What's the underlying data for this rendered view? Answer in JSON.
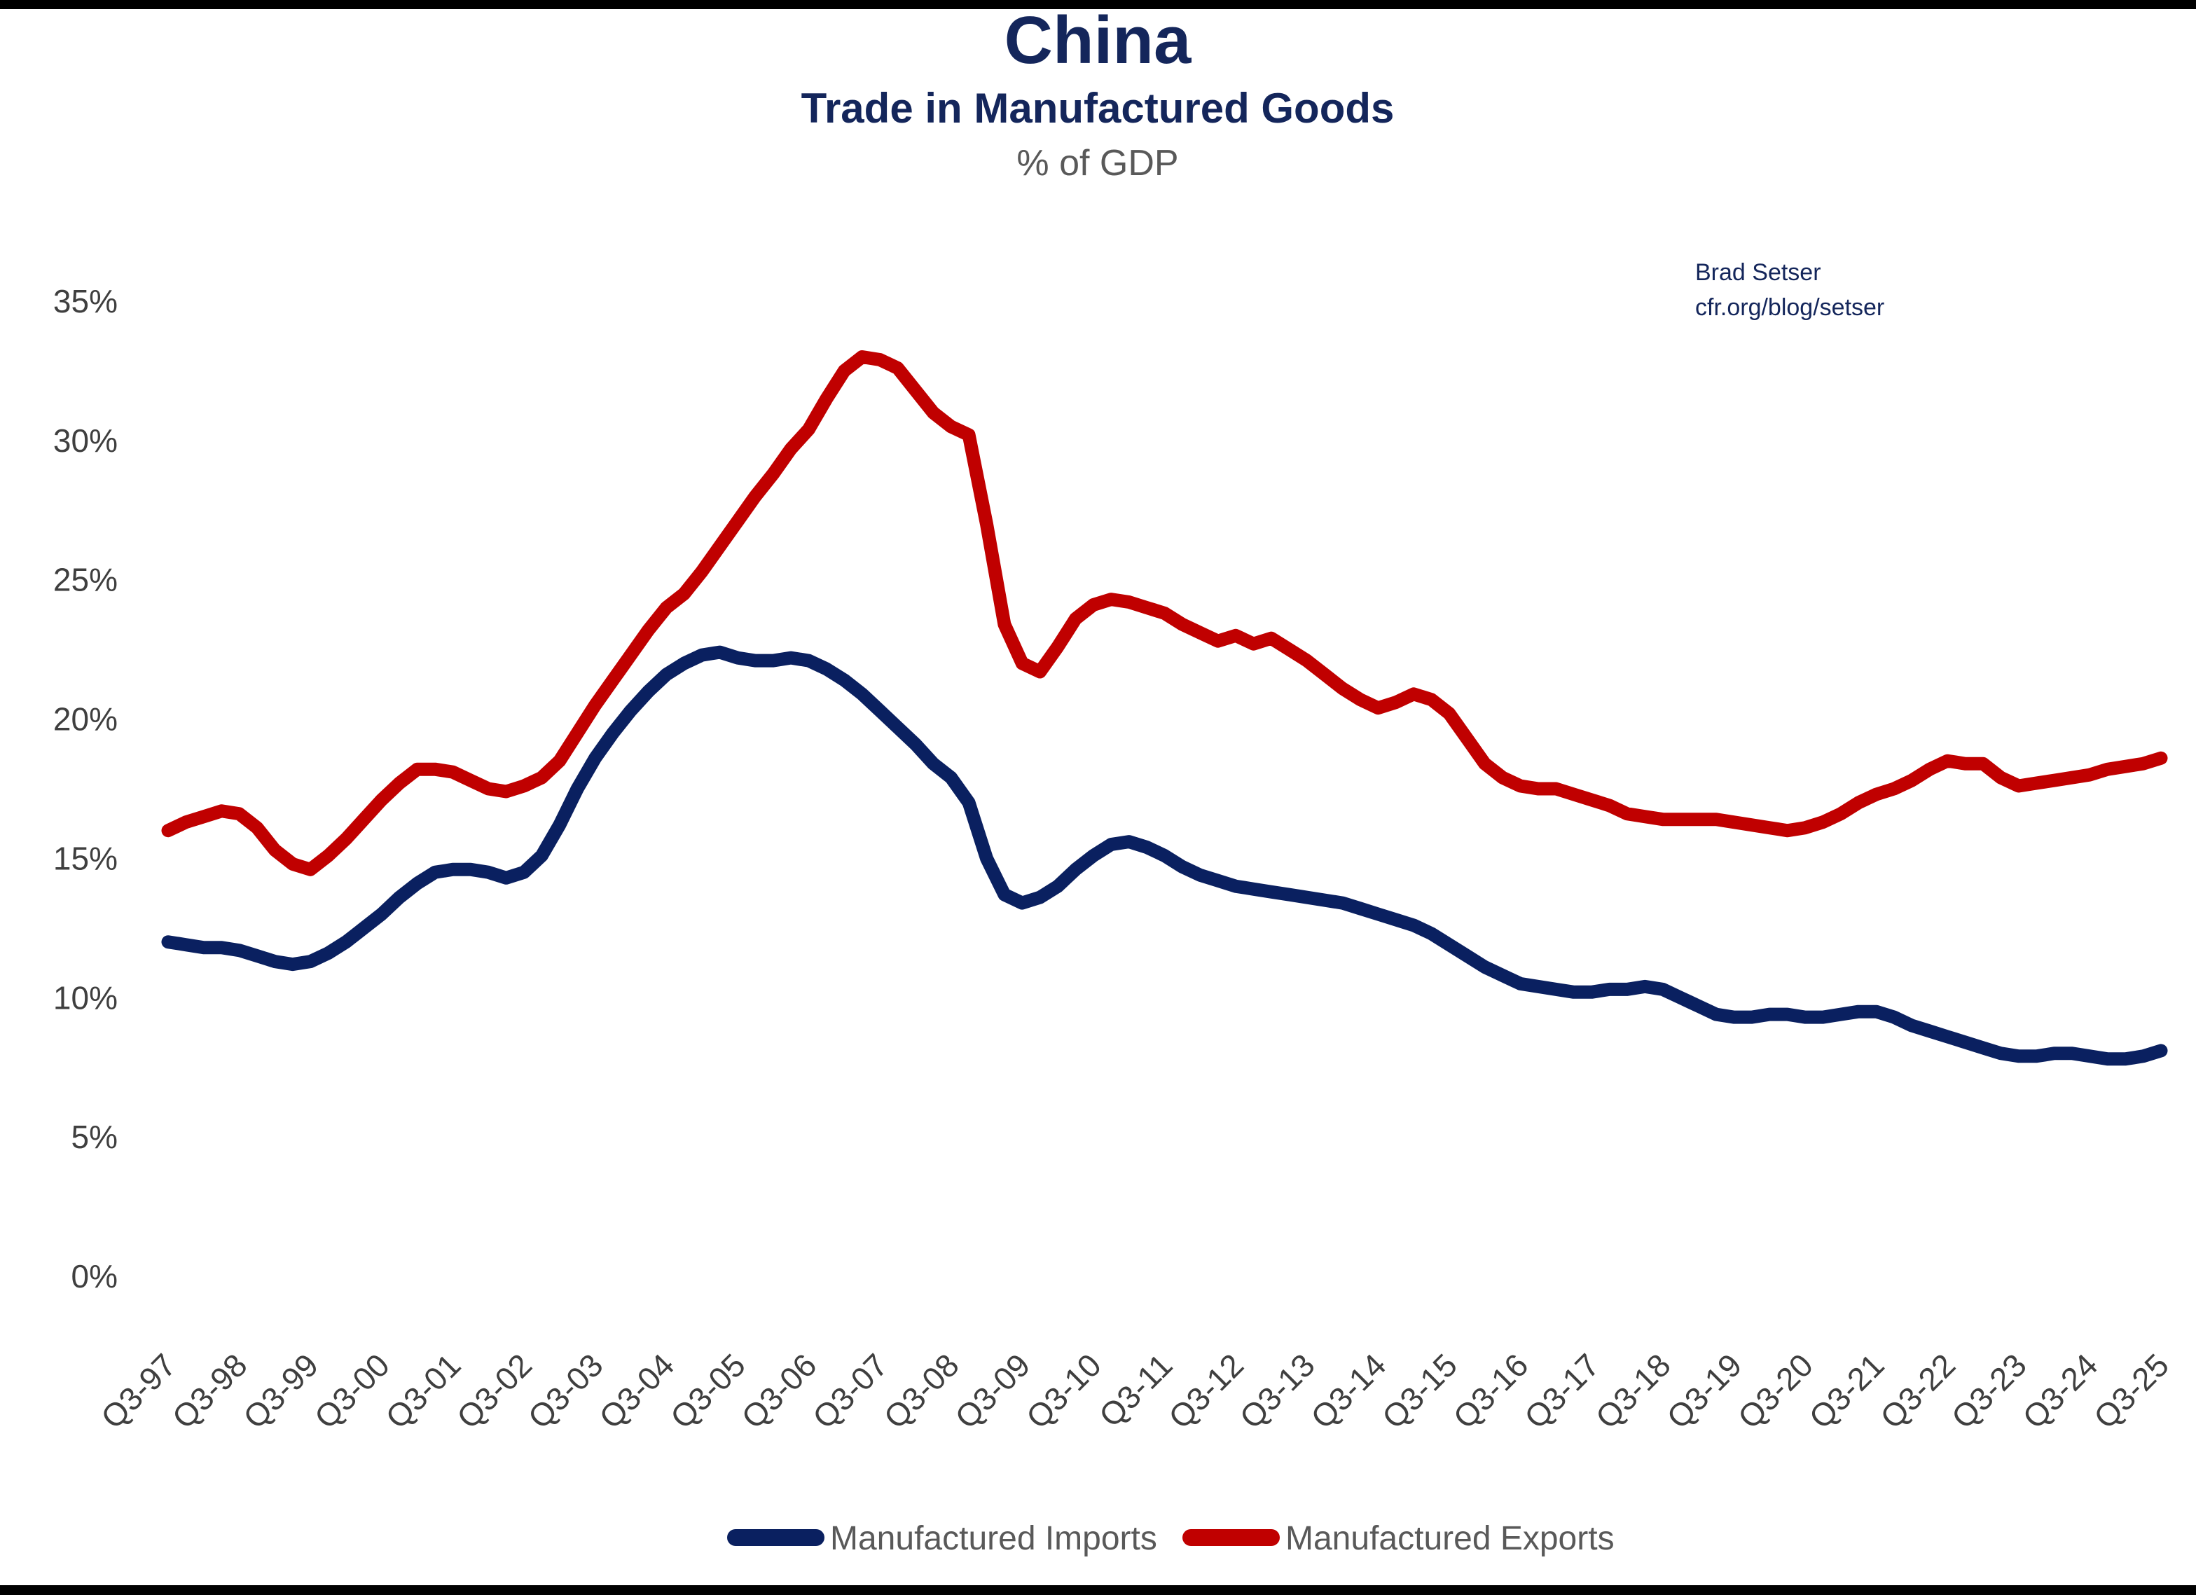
{
  "page": {
    "background": "#ffffff",
    "top_border_color": "#000000",
    "bottom_border_color": "#000000"
  },
  "header": {
    "title": "China",
    "subtitle": "Trade in Manufactured Goods",
    "unit_label": "% of GDP",
    "attribution_name": "Brad Setser",
    "attribution_url": "cfr.org/blog/setser",
    "title_color": "#14265B"
  },
  "legend": {
    "position": "bottom",
    "items": [
      {
        "label": "Manufactured Imports",
        "color": "#0A2060"
      },
      {
        "label": "Manufactured Exports",
        "color": "#C00000"
      }
    ]
  },
  "chart_data": {
    "type": "line",
    "title": "China",
    "subtitle": "Trade in Manufactured Goods",
    "ylabel": "% of GDP",
    "xlabel": "",
    "grid": false,
    "legend_position": "bottom",
    "x_unit": "quarter",
    "x_start": "Q3-1997",
    "x_end": "Q3-2025",
    "points_per_year": 4,
    "x_tick_labels": [
      "Q3-97",
      "Q3-98",
      "Q3-99",
      "Q3-00",
      "Q3-01",
      "Q3-02",
      "Q3-03",
      "Q3-04",
      "Q3-05",
      "Q3-06",
      "Q3-07",
      "Q3-08",
      "Q3-09",
      "Q3-10",
      "Q3-11",
      "Q3-12",
      "Q3-13",
      "Q3-14",
      "Q3-15",
      "Q3-16",
      "Q3-17",
      "Q3-18",
      "Q3-19",
      "Q3-20",
      "Q3-21",
      "Q3-22",
      "Q3-23",
      "Q3-24",
      "Q3-25"
    ],
    "ylim": [
      0,
      35
    ],
    "y_ticks": [
      0,
      5,
      10,
      15,
      20,
      25,
      30,
      35
    ],
    "y_tick_suffix": "%",
    "series": [
      {
        "name": "Manufactured Imports",
        "color": "#0A2060",
        "values": [
          12.0,
          11.9,
          11.8,
          11.8,
          11.7,
          11.5,
          11.3,
          11.2,
          11.3,
          11.6,
          12.0,
          12.5,
          13.0,
          13.6,
          14.1,
          14.5,
          14.6,
          14.6,
          14.5,
          14.3,
          14.5,
          15.1,
          16.2,
          17.5,
          18.6,
          19.5,
          20.3,
          21.0,
          21.6,
          22.0,
          22.3,
          22.4,
          22.2,
          22.1,
          22.1,
          22.2,
          22.1,
          21.8,
          21.4,
          20.9,
          20.3,
          19.7,
          19.1,
          18.4,
          17.9,
          17.0,
          15.0,
          13.7,
          13.4,
          13.6,
          14.0,
          14.6,
          15.1,
          15.5,
          15.6,
          15.4,
          15.1,
          14.7,
          14.4,
          14.2,
          14.0,
          13.9,
          13.8,
          13.7,
          13.6,
          13.5,
          13.4,
          13.2,
          13.0,
          12.8,
          12.6,
          12.3,
          11.9,
          11.5,
          11.1,
          10.8,
          10.5,
          10.4,
          10.3,
          10.2,
          10.2,
          10.3,
          10.3,
          10.4,
          10.3,
          10.0,
          9.7,
          9.4,
          9.3,
          9.3,
          9.4,
          9.4,
          9.3,
          9.3,
          9.4,
          9.5,
          9.5,
          9.3,
          9.0,
          8.8,
          8.6,
          8.4,
          8.2,
          8.0,
          7.9,
          7.9,
          8.0,
          8.0,
          7.9,
          7.8,
          7.8,
          7.9,
          8.1
        ]
      },
      {
        "name": "Manufactured Exports",
        "color": "#C00000",
        "values": [
          16.0,
          16.3,
          16.5,
          16.7,
          16.6,
          16.1,
          15.3,
          14.8,
          14.6,
          15.1,
          15.7,
          16.4,
          17.1,
          17.7,
          18.2,
          18.2,
          18.1,
          17.8,
          17.5,
          17.4,
          17.6,
          17.9,
          18.5,
          19.5,
          20.5,
          21.4,
          22.3,
          23.2,
          24.0,
          24.5,
          25.3,
          26.2,
          27.1,
          28.0,
          28.8,
          29.7,
          30.4,
          31.5,
          32.5,
          33.0,
          32.9,
          32.6,
          31.8,
          31.0,
          30.5,
          30.2,
          27.0,
          23.4,
          22.0,
          21.7,
          22.6,
          23.6,
          24.1,
          24.3,
          24.2,
          24.0,
          23.8,
          23.4,
          23.1,
          22.8,
          23.0,
          22.7,
          22.9,
          22.5,
          22.1,
          21.6,
          21.1,
          20.7,
          20.4,
          20.6,
          20.9,
          20.7,
          20.2,
          19.3,
          18.4,
          17.9,
          17.6,
          17.5,
          17.5,
          17.3,
          17.1,
          16.9,
          16.6,
          16.5,
          16.4,
          16.4,
          16.4,
          16.4,
          16.3,
          16.2,
          16.1,
          16.0,
          16.1,
          16.3,
          16.6,
          17.0,
          17.3,
          17.5,
          17.8,
          18.2,
          18.5,
          18.4,
          18.4,
          17.9,
          17.6,
          17.7,
          17.8,
          17.9,
          18.0,
          18.2,
          18.3,
          18.4,
          18.6
        ]
      }
    ]
  }
}
